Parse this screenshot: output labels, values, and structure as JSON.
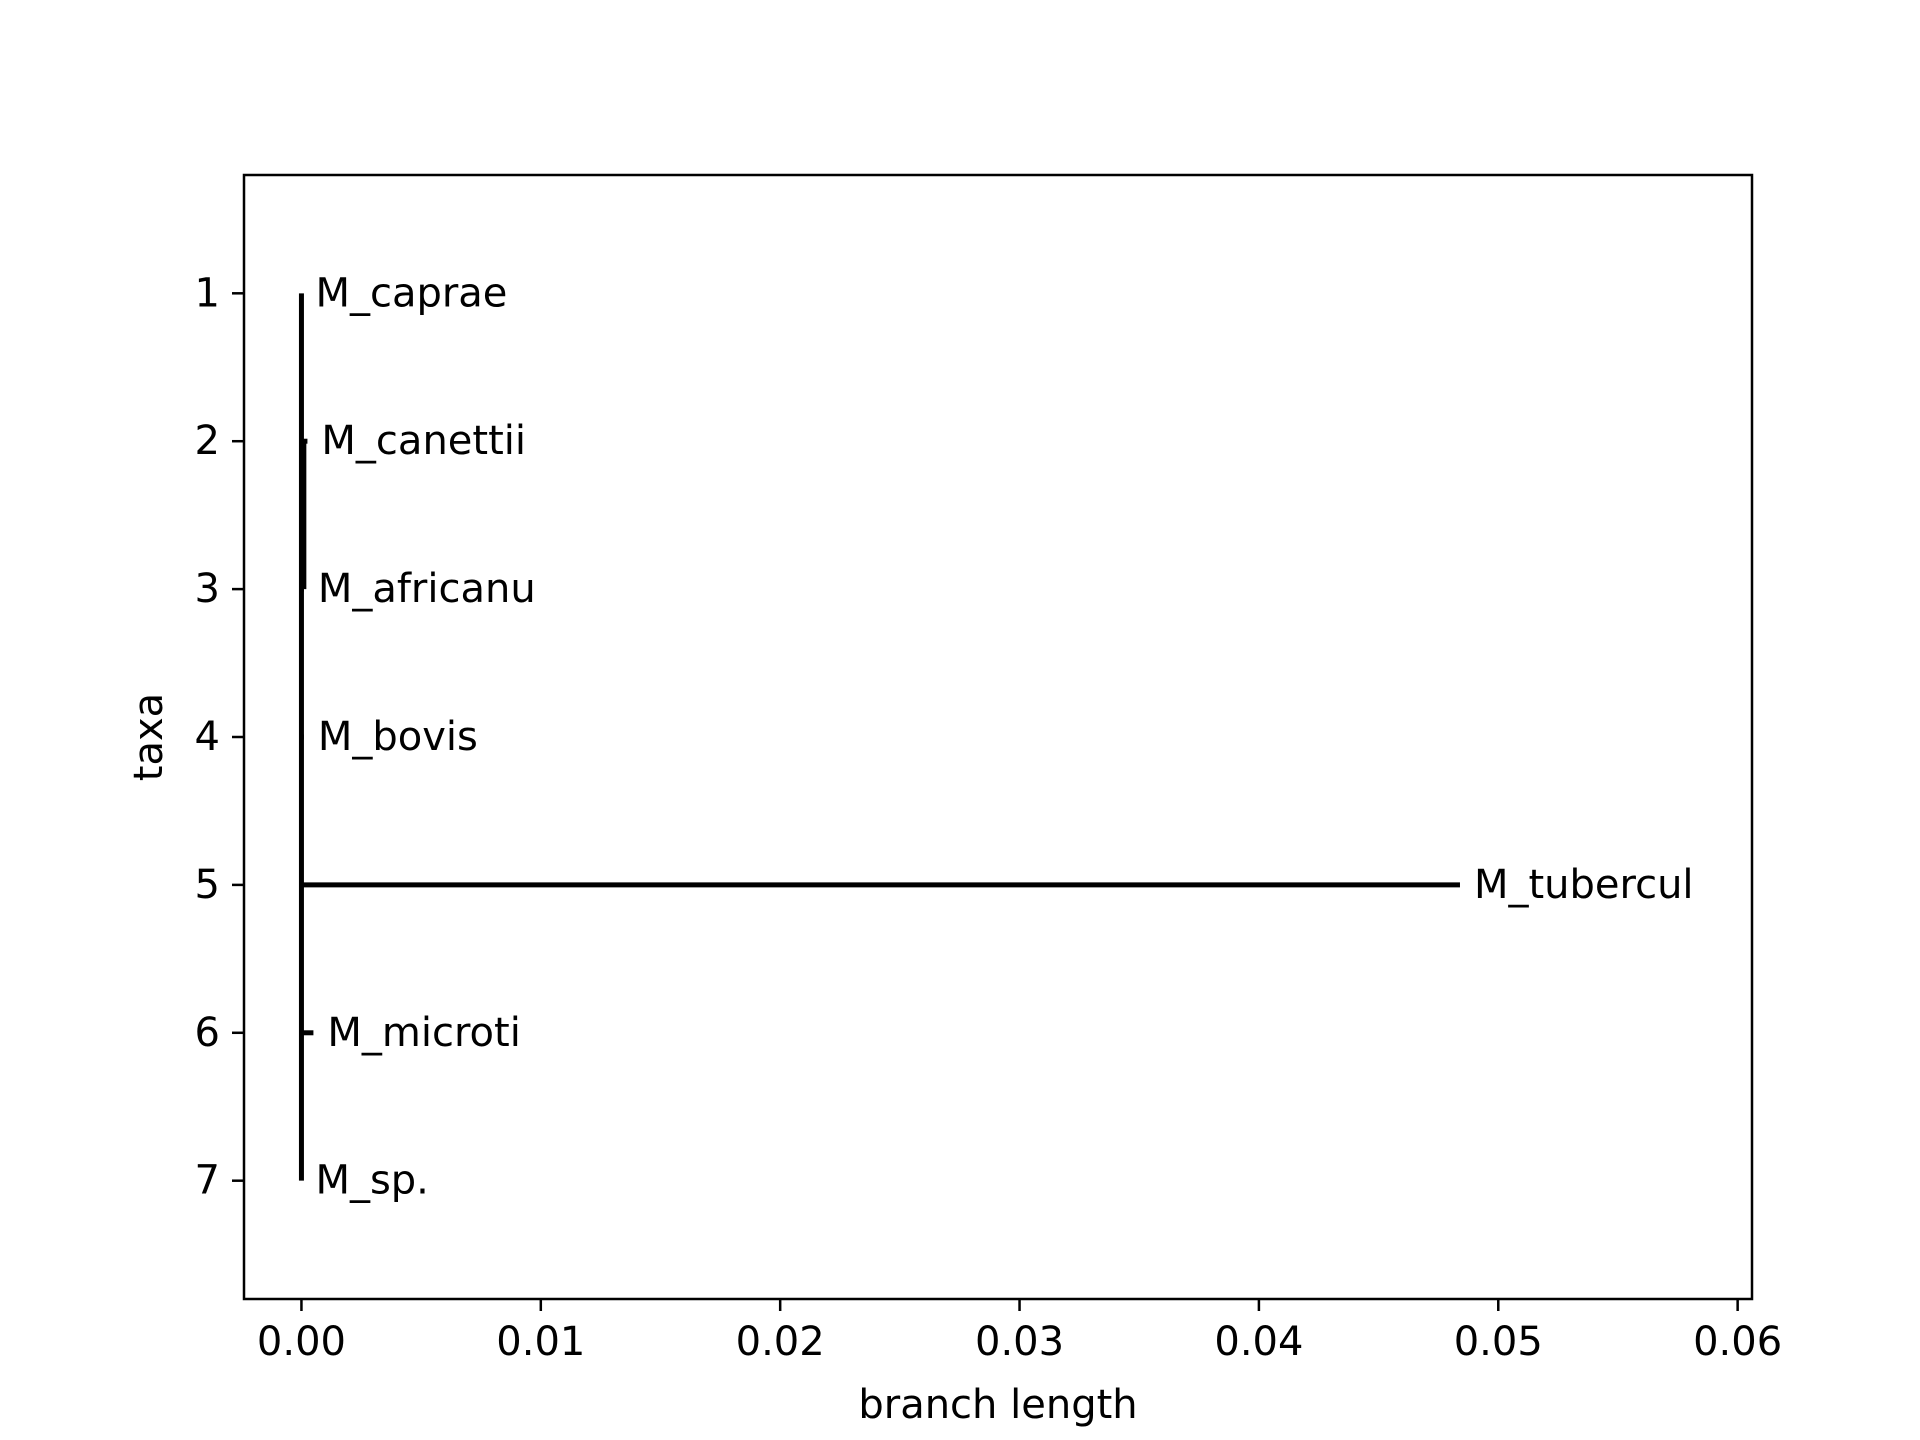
{
  "chart_data": {
    "type": "tree",
    "xlabel": "branch length",
    "ylabel": "taxa",
    "xlim": [
      -0.0024,
      0.0606
    ],
    "ylim": [
      7.8,
      0.2
    ],
    "xticks": [
      "0.00",
      "0.01",
      "0.02",
      "0.03",
      "0.04",
      "0.05",
      "0.06"
    ],
    "xtick_values": [
      0,
      0.01,
      0.02,
      0.03,
      0.04,
      0.05,
      0.06
    ],
    "yticks": [
      "1",
      "2",
      "3",
      "4",
      "5",
      "6",
      "7"
    ],
    "ytick_values": [
      1,
      2,
      3,
      4,
      5,
      6,
      7
    ],
    "root_x": 0,
    "taxa": [
      {
        "y": 1,
        "label": "M_caprae",
        "branch_length": 0.0
      },
      {
        "y": 2,
        "label": "M_canettii",
        "branch_length": 0.00025
      },
      {
        "y": 3,
        "label": "M_africanu",
        "branch_length": 0.0001
      },
      {
        "y": 4,
        "label": "M_bovis",
        "branch_length": 0.0001
      },
      {
        "y": 5,
        "label": "M_tubercul",
        "branch_length": 0.0484
      },
      {
        "y": 6,
        "label": "M_microti",
        "branch_length": 0.0005
      },
      {
        "y": 7,
        "label": "M_sp.",
        "branch_length": 0.0
      }
    ],
    "vertical_branches": [
      {
        "x": 0,
        "y_from": 1,
        "y_to": 7
      },
      {
        "x": 0.0001,
        "y_from": 2,
        "y_to": 3
      }
    ],
    "grid": false,
    "line_color": "#000000"
  }
}
